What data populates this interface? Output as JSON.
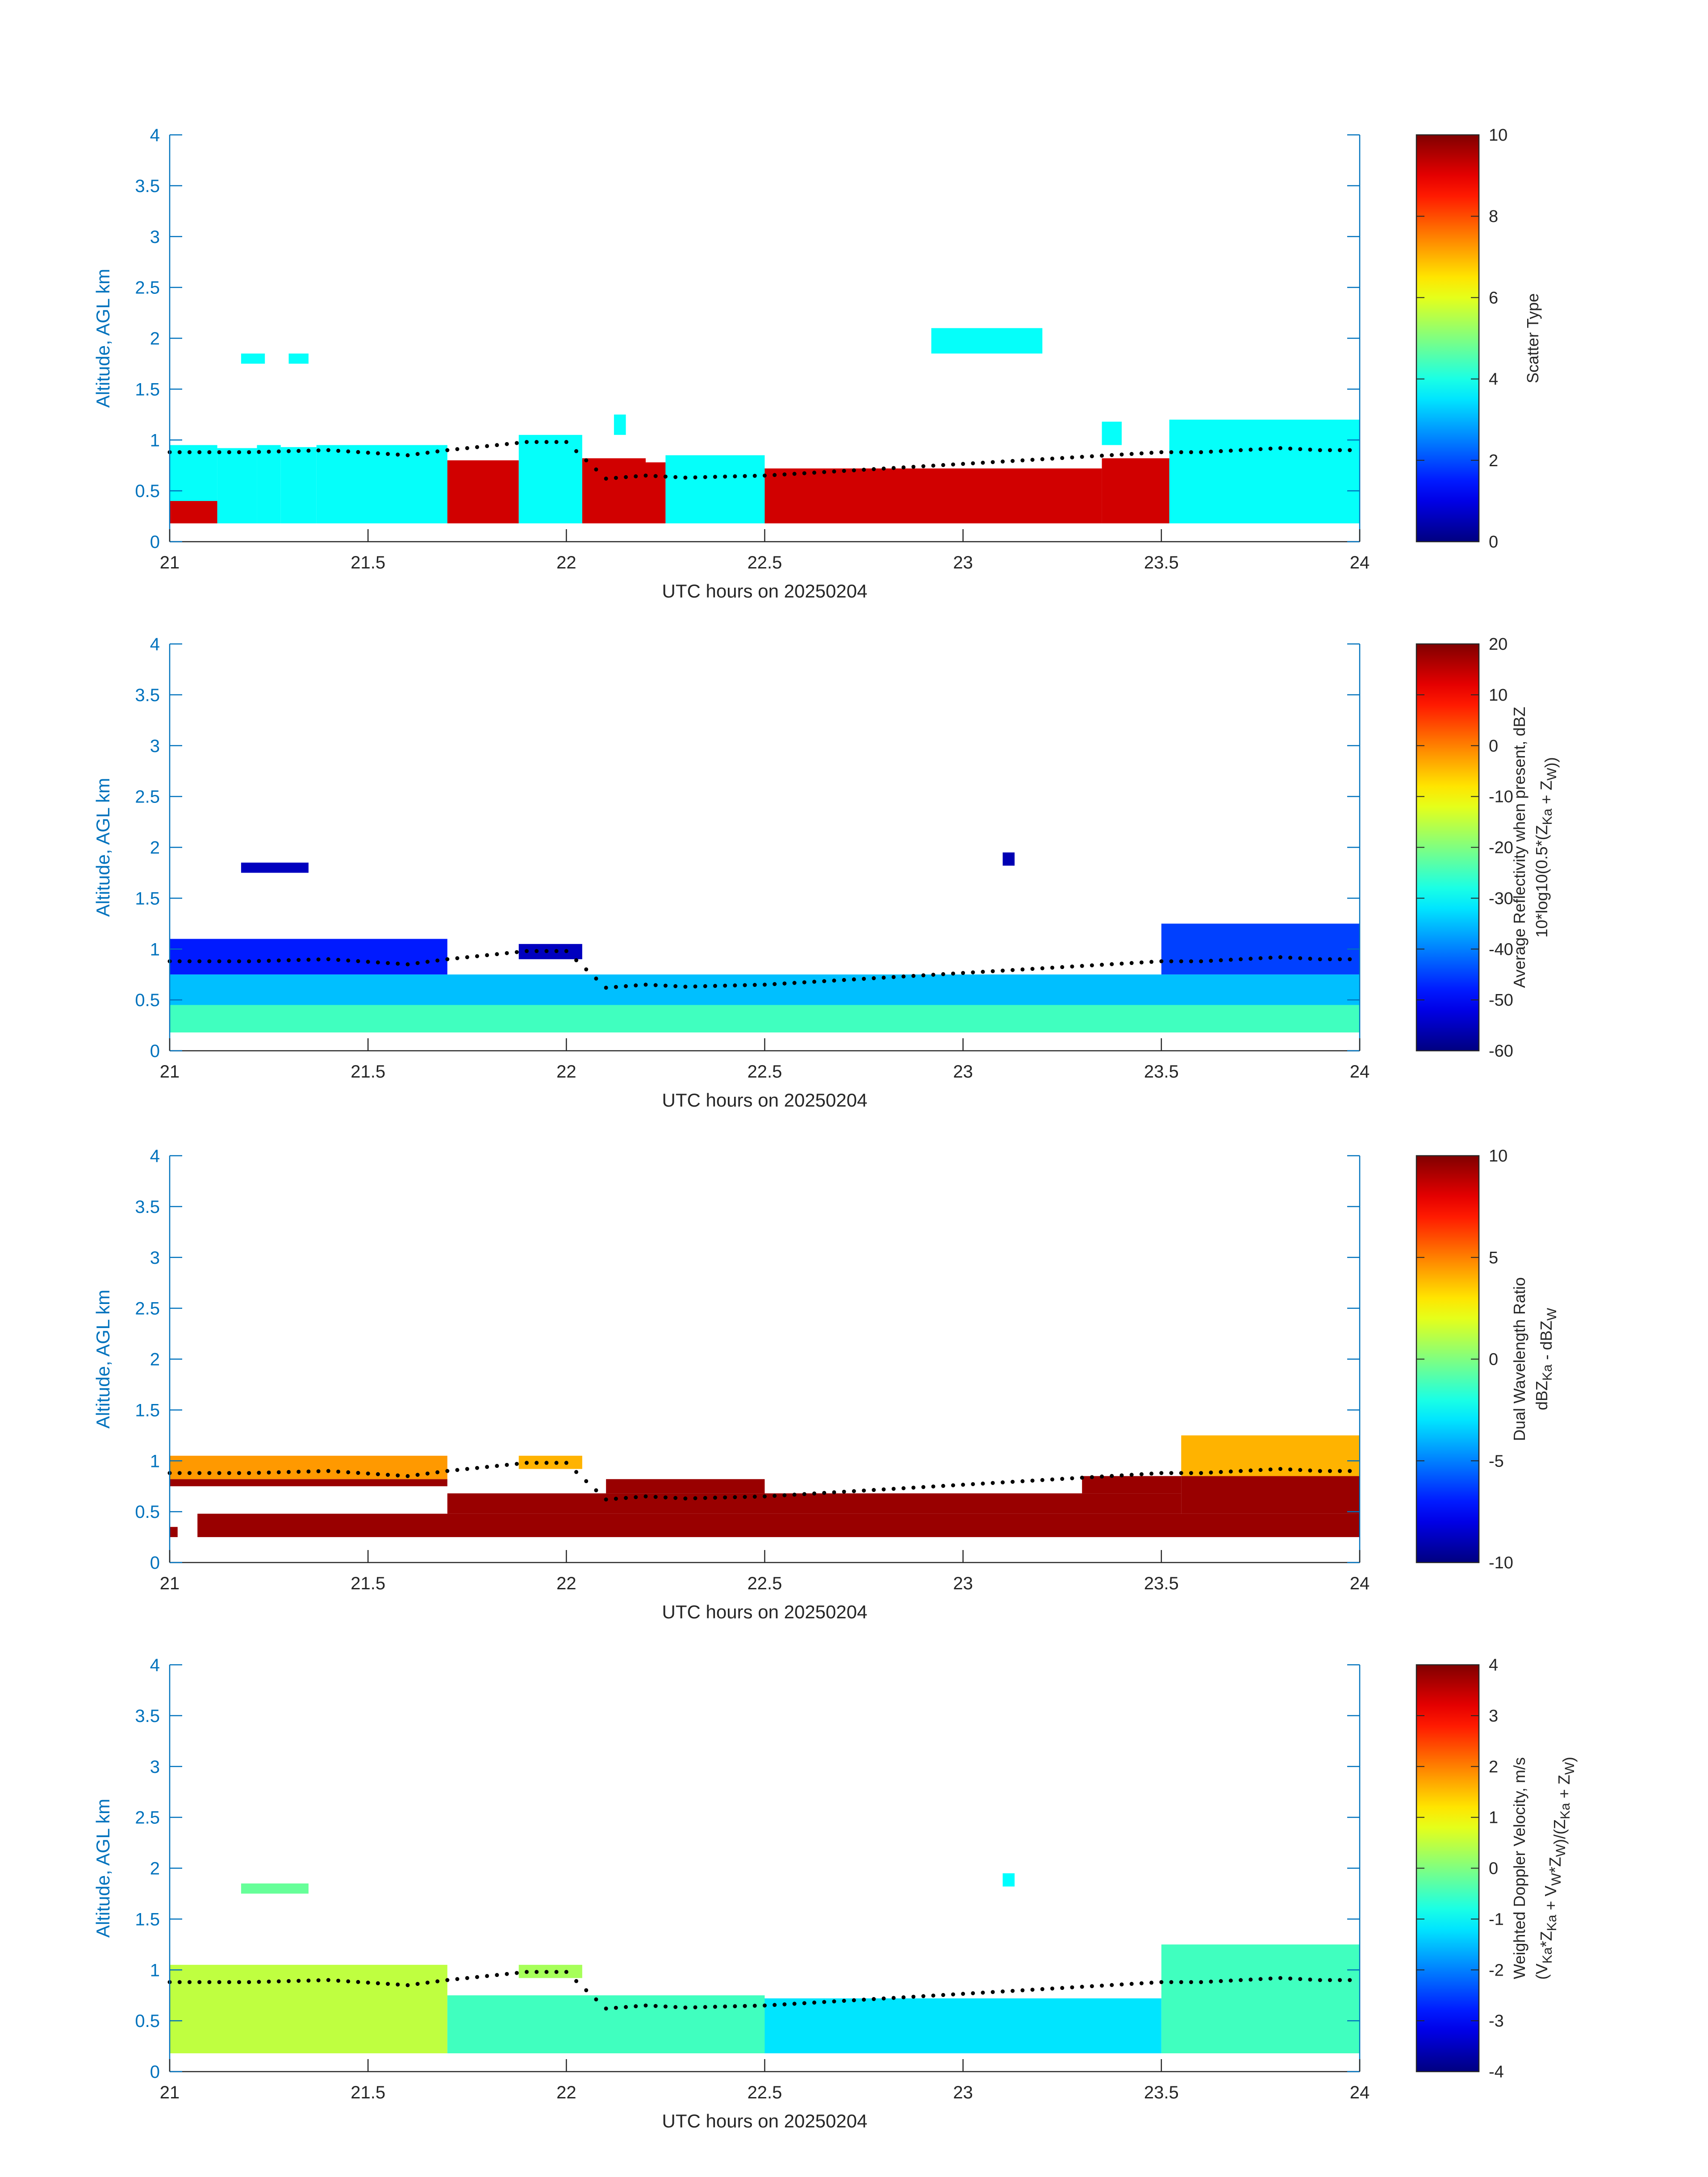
{
  "figure": {
    "background": "#ffffff",
    "axis_color": "#0072BD"
  },
  "chart_data": [
    {
      "type": "heatmap",
      "title": "",
      "xlabel": "UTC hours on 20250204",
      "ylabel": "Altitude, AGL km",
      "xlim": [
        21,
        24
      ],
      "ylim": [
        0,
        4
      ],
      "xticks": [
        "21",
        "21.5",
        "22",
        "22.5",
        "23",
        "23.5",
        "24"
      ],
      "yticks": [
        "0",
        "0.5",
        "1",
        "1.5",
        "2",
        "2.5",
        "3",
        "3.5",
        "4"
      ],
      "colorbar": {
        "label": [
          "Scatter Type"
        ],
        "clim": [
          0,
          10
        ],
        "ticks": [
          "0",
          "2",
          "4",
          "6",
          "8",
          "10"
        ],
        "colormap": "jet"
      },
      "regions": [
        {
          "x": [
            21.0,
            21.12
          ],
          "y": [
            0.18,
            0.95
          ],
          "value": 3.8
        },
        {
          "x": [
            21.0,
            21.12
          ],
          "y": [
            0.18,
            0.4
          ],
          "value": 9.2
        },
        {
          "x": [
            21.12,
            21.22
          ],
          "y": [
            0.18,
            0.92
          ],
          "value": 3.8
        },
        {
          "x": [
            21.22,
            21.28
          ],
          "y": [
            0.18,
            0.95
          ],
          "value": 3.8
        },
        {
          "x": [
            21.28,
            21.37
          ],
          "y": [
            0.18,
            0.93
          ],
          "value": 3.8
        },
        {
          "x": [
            21.37,
            21.7
          ],
          "y": [
            0.18,
            0.95
          ],
          "value": 3.8
        },
        {
          "x": [
            21.7,
            21.88
          ],
          "y": [
            0.18,
            0.8
          ],
          "value": 9.2
        },
        {
          "x": [
            21.88,
            22.04
          ],
          "y": [
            0.18,
            1.05
          ],
          "value": 3.8
        },
        {
          "x": [
            22.04,
            22.2
          ],
          "y": [
            0.18,
            0.82
          ],
          "value": 9.2
        },
        {
          "x": [
            22.2,
            22.25
          ],
          "y": [
            0.18,
            0.78
          ],
          "value": 9.2
        },
        {
          "x": [
            22.25,
            22.5
          ],
          "y": [
            0.18,
            0.85
          ],
          "value": 3.8
        },
        {
          "x": [
            22.5,
            23.35
          ],
          "y": [
            0.18,
            0.72
          ],
          "value": 9.2
        },
        {
          "x": [
            23.35,
            23.52
          ],
          "y": [
            0.18,
            0.82
          ],
          "value": 9.2
        },
        {
          "x": [
            23.52,
            24.0
          ],
          "y": [
            0.18,
            1.2
          ],
          "value": 3.8
        },
        {
          "x": [
            21.18,
            21.24
          ],
          "y": [
            1.75,
            1.85
          ],
          "value": 3.8
        },
        {
          "x": [
            21.3,
            21.35
          ],
          "y": [
            1.75,
            1.85
          ],
          "value": 3.8
        },
        {
          "x": [
            22.92,
            23.2
          ],
          "y": [
            1.85,
            2.1
          ],
          "value": 3.8
        },
        {
          "x": [
            22.12,
            22.15
          ],
          "y": [
            1.05,
            1.25
          ],
          "value": 3.8
        },
        {
          "x": [
            23.35,
            23.4
          ],
          "y": [
            0.95,
            1.18
          ],
          "value": 3.8
        }
      ],
      "dotted_line": {
        "x": [
          21.0,
          21.2,
          21.4,
          21.6,
          21.7,
          21.9,
          22.0,
          22.1,
          22.2,
          22.3,
          22.5,
          23.5,
          23.6,
          23.7,
          23.8,
          23.9,
          24.0
        ],
        "y": [
          0.88,
          0.88,
          0.9,
          0.85,
          0.9,
          0.98,
          0.98,
          0.62,
          0.65,
          0.63,
          0.65,
          0.88,
          0.88,
          0.9,
          0.92,
          0.9,
          0.9
        ]
      }
    },
    {
      "type": "heatmap",
      "title": "",
      "xlabel": "UTC hours on 20250204",
      "ylabel": "Altitude, AGL km",
      "xlim": [
        21,
        24
      ],
      "ylim": [
        0,
        4
      ],
      "xticks": [
        "21",
        "21.5",
        "22",
        "22.5",
        "23",
        "23.5",
        "24"
      ],
      "yticks": [
        "0",
        "0.5",
        "1",
        "1.5",
        "2",
        "2.5",
        "3",
        "3.5",
        "4"
      ],
      "colorbar": {
        "label": [
          "Average Reflectivity when present, dBZ",
          "10*log10(0.5*(Z_Ka + Z_W))"
        ],
        "clim": [
          -60,
          20
        ],
        "ticks": [
          "-60",
          "-50",
          "-40",
          "-30",
          "-20",
          "-10",
          "0",
          "10",
          "20"
        ],
        "colormap": "jet"
      },
      "regions": [
        {
          "x": [
            21.0,
            24.0
          ],
          "y": [
            0.18,
            0.45
          ],
          "value": -25
        },
        {
          "x": [
            21.0,
            24.0
          ],
          "y": [
            0.45,
            0.75
          ],
          "value": -35
        },
        {
          "x": [
            21.0,
            21.7
          ],
          "y": [
            0.75,
            1.1
          ],
          "value": -48
        },
        {
          "x": [
            21.88,
            22.04
          ],
          "y": [
            0.9,
            1.05
          ],
          "value": -55
        },
        {
          "x": [
            23.5,
            24.0
          ],
          "y": [
            0.75,
            1.25
          ],
          "value": -45
        },
        {
          "x": [
            21.18,
            21.35
          ],
          "y": [
            1.75,
            1.85
          ],
          "value": -55
        },
        {
          "x": [
            23.1,
            23.13
          ],
          "y": [
            1.82,
            1.95
          ],
          "value": -56
        }
      ],
      "dotted_line": {
        "x": [
          21.0,
          21.2,
          21.4,
          21.6,
          21.7,
          21.9,
          22.0,
          22.1,
          22.2,
          22.3,
          22.5,
          23.5,
          23.6,
          23.7,
          23.8,
          23.9,
          24.0
        ],
        "y": [
          0.88,
          0.88,
          0.9,
          0.85,
          0.9,
          0.98,
          0.98,
          0.62,
          0.65,
          0.63,
          0.65,
          0.88,
          0.88,
          0.9,
          0.92,
          0.9,
          0.9
        ]
      }
    },
    {
      "type": "heatmap",
      "title": "",
      "xlabel": "UTC hours on 20250204",
      "ylabel": "Altitude, AGL km",
      "xlim": [
        21,
        24
      ],
      "ylim": [
        0,
        4
      ],
      "xticks": [
        "21",
        "21.5",
        "22",
        "22.5",
        "23",
        "23.5",
        "24"
      ],
      "yticks": [
        "0",
        "0.5",
        "1",
        "1.5",
        "2",
        "2.5",
        "3",
        "3.5",
        "4"
      ],
      "colorbar": {
        "label": [
          "Dual Wavelength Ratio",
          "dBZ_Ka - dBZ_W"
        ],
        "clim": [
          -10,
          10
        ],
        "ticks": [
          "-10",
          "-5",
          "0",
          "5",
          "10"
        ],
        "colormap": "jet"
      },
      "regions": [
        {
          "x": [
            21.07,
            24.0
          ],
          "y": [
            0.25,
            0.48
          ],
          "value": 9.5
        },
        {
          "x": [
            21.7,
            23.55
          ],
          "y": [
            0.48,
            0.68
          ],
          "value": 9.5
        },
        {
          "x": [
            22.1,
            22.5
          ],
          "y": [
            0.68,
            0.82
          ],
          "value": 9.5
        },
        {
          "x": [
            23.3,
            23.55
          ],
          "y": [
            0.68,
            0.85
          ],
          "value": 9.5
        },
        {
          "x": [
            21.0,
            21.7
          ],
          "y": [
            0.75,
            0.82
          ],
          "value": 9.5
        },
        {
          "x": [
            21.0,
            21.7
          ],
          "y": [
            0.82,
            1.05
          ],
          "value": 4.5
        },
        {
          "x": [
            21.88,
            22.04
          ],
          "y": [
            0.92,
            1.05
          ],
          "value": 4.0
        },
        {
          "x": [
            23.55,
            24.0
          ],
          "y": [
            0.48,
            0.85
          ],
          "value": 9.5
        },
        {
          "x": [
            23.55,
            24.0
          ],
          "y": [
            0.85,
            1.25
          ],
          "value": 4.0
        },
        {
          "x": [
            21.0,
            21.02
          ],
          "y": [
            0.25,
            0.35
          ],
          "value": 9.5
        }
      ],
      "dotted_line": {
        "x": [
          21.0,
          21.2,
          21.4,
          21.6,
          21.7,
          21.9,
          22.0,
          22.1,
          22.2,
          22.3,
          22.5,
          23.5,
          23.6,
          23.7,
          23.8,
          23.9,
          24.0
        ],
        "y": [
          0.88,
          0.88,
          0.9,
          0.85,
          0.9,
          0.98,
          0.98,
          0.62,
          0.65,
          0.63,
          0.65,
          0.88,
          0.88,
          0.9,
          0.92,
          0.9,
          0.9
        ]
      }
    },
    {
      "type": "heatmap",
      "title": "",
      "xlabel": "UTC hours on 20250204",
      "ylabel": "Altitude, AGL km",
      "xlim": [
        21,
        24
      ],
      "ylim": [
        0,
        4
      ],
      "xticks": [
        "21",
        "21.5",
        "22",
        "22.5",
        "23",
        "23.5",
        "24"
      ],
      "yticks": [
        "0",
        "0.5",
        "1",
        "1.5",
        "2",
        "2.5",
        "3",
        "3.5",
        "4"
      ],
      "colorbar": {
        "label": [
          "Weighted Doppler Velocity, m/s",
          "(V_Ka*Z_Ka + V_W*Z_W)/(Z_Ka + Z_W)"
        ],
        "clim": [
          -4,
          4
        ],
        "ticks": [
          "-4",
          "-3",
          "-2",
          "-1",
          "0",
          "1",
          "2",
          "3",
          "4"
        ],
        "colormap": "jet"
      },
      "regions": [
        {
          "x": [
            21.0,
            21.7
          ],
          "y": [
            0.18,
            1.05
          ],
          "value": 0.5
        },
        {
          "x": [
            21.7,
            22.5
          ],
          "y": [
            0.18,
            0.75
          ],
          "value": -0.5
        },
        {
          "x": [
            22.5,
            23.5
          ],
          "y": [
            0.18,
            0.72
          ],
          "value": -1.2
        },
        {
          "x": [
            23.5,
            24.0
          ],
          "y": [
            0.18,
            1.25
          ],
          "value": -0.5
        },
        {
          "x": [
            21.88,
            22.04
          ],
          "y": [
            0.92,
            1.05
          ],
          "value": 0.3
        },
        {
          "x": [
            21.18,
            21.35
          ],
          "y": [
            1.75,
            1.85
          ],
          "value": -0.2
        },
        {
          "x": [
            23.1,
            23.13
          ],
          "y": [
            1.82,
            1.95
          ],
          "value": -1.0
        }
      ],
      "dotted_line": {
        "x": [
          21.0,
          21.2,
          21.4,
          21.6,
          21.7,
          21.9,
          22.0,
          22.1,
          22.2,
          22.3,
          22.5,
          23.5,
          23.6,
          23.7,
          23.8,
          23.9,
          24.0
        ],
        "y": [
          0.88,
          0.88,
          0.9,
          0.85,
          0.9,
          0.98,
          0.98,
          0.62,
          0.65,
          0.63,
          0.65,
          0.88,
          0.88,
          0.9,
          0.92,
          0.9,
          0.9
        ]
      }
    }
  ]
}
